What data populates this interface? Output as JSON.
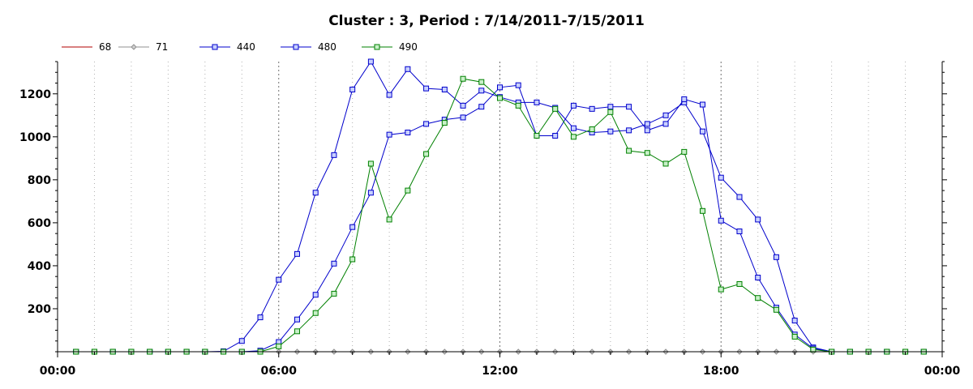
{
  "chart_data": {
    "type": "line",
    "title": "Cluster : 3, Period : 7/14/2011-7/15/2011",
    "xlabel": "",
    "ylabel": "",
    "x_unit": "hours",
    "xlim": [
      0,
      24
    ],
    "ylim": [
      0,
      1350
    ],
    "x_ticks": [
      {
        "value": 0,
        "label": "00:00"
      },
      {
        "value": 6,
        "label": "06:00"
      },
      {
        "value": 12,
        "label": "12:00"
      },
      {
        "value": 18,
        "label": "18:00"
      },
      {
        "value": 24,
        "label": "00:00"
      }
    ],
    "y_ticks": [
      200,
      400,
      600,
      800,
      1000,
      1200
    ],
    "grid": "vertical dotted lines every hour",
    "legend_position": "top-left",
    "x": [
      0.5,
      1,
      1.5,
      2,
      2.5,
      3,
      3.5,
      4,
      4.5,
      5,
      5.5,
      6,
      6.5,
      7,
      7.5,
      8,
      8.5,
      9,
      9.5,
      10,
      10.5,
      11,
      11.5,
      12,
      12.5,
      13,
      13.5,
      14,
      14.5,
      15,
      15.5,
      16,
      16.5,
      17,
      17.5,
      18,
      18.5,
      19,
      19.5,
      20,
      20.5,
      21,
      21.5,
      22,
      22.5,
      23,
      23.5
    ],
    "series": [
      {
        "name": "68",
        "color": "#b00000",
        "marker": "none",
        "values": [
          0,
          0,
          0,
          0,
          0,
          0,
          0,
          0,
          0,
          0,
          0,
          0,
          0,
          0,
          0,
          0,
          0,
          0,
          0,
          0,
          0,
          0,
          0,
          0,
          0,
          0,
          0,
          0,
          0,
          0,
          0,
          0,
          0,
          0,
          0,
          0,
          0,
          0,
          0,
          0,
          0,
          0,
          0,
          0,
          0,
          0,
          0
        ]
      },
      {
        "name": "71",
        "color": "#909090",
        "marker": "diamond",
        "values": [
          0,
          0,
          0,
          0,
          0,
          0,
          0,
          0,
          0,
          0,
          0,
          0,
          0,
          0,
          0,
          0,
          0,
          0,
          0,
          0,
          0,
          0,
          0,
          0,
          0,
          0,
          0,
          0,
          0,
          0,
          0,
          0,
          0,
          0,
          0,
          0,
          0,
          0,
          0,
          0,
          0,
          0,
          0,
          0,
          0,
          0,
          0
        ]
      },
      {
        "name": "440",
        "color": "#0000cc",
        "marker": "square",
        "values": [
          0,
          0,
          0,
          0,
          0,
          0,
          0,
          0,
          2,
          50,
          160,
          335,
          455,
          740,
          915,
          1220,
          1350,
          1195,
          1315,
          1225,
          1220,
          1145,
          1215,
          1185,
          1160,
          1160,
          1135,
          1040,
          1020,
          1025,
          1030,
          1060,
          1100,
          1160,
          1025,
          810,
          720,
          615,
          440,
          145,
          20,
          0,
          0,
          0,
          0,
          0,
          0
        ]
      },
      {
        "name": "480",
        "color": "#0000cc",
        "marker": "square",
        "values": [
          0,
          0,
          0,
          0,
          0,
          0,
          0,
          0,
          0,
          0,
          5,
          45,
          150,
          265,
          410,
          580,
          740,
          1010,
          1020,
          1060,
          1080,
          1090,
          1140,
          1230,
          1240,
          1005,
          1005,
          1145,
          1130,
          1140,
          1140,
          1030,
          1060,
          1175,
          1150,
          610,
          560,
          345,
          205,
          80,
          15,
          0,
          0,
          0,
          0,
          0,
          0
        ]
      },
      {
        "name": "490",
        "color": "#008000",
        "marker": "square",
        "values": [
          0,
          0,
          0,
          0,
          0,
          0,
          0,
          0,
          0,
          0,
          0,
          25,
          95,
          180,
          270,
          430,
          875,
          615,
          750,
          920,
          1065,
          1270,
          1255,
          1180,
          1145,
          1005,
          1130,
          1000,
          1035,
          1115,
          935,
          925,
          875,
          930,
          655,
          290,
          315,
          250,
          195,
          70,
          10,
          0,
          0,
          0,
          0,
          0,
          0
        ]
      }
    ]
  }
}
